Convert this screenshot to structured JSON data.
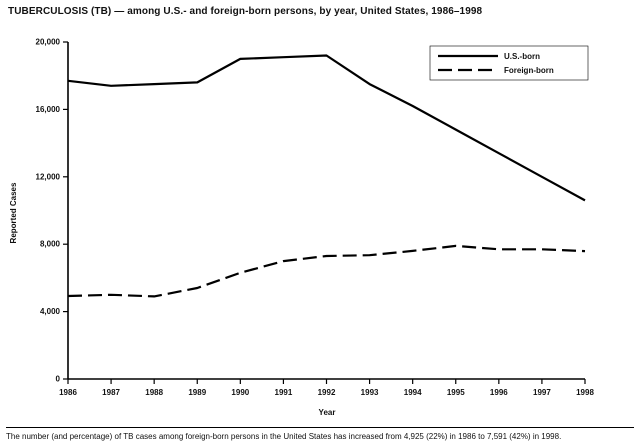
{
  "chart_data": {
    "type": "line",
    "title": "TUBERCULOSIS (TB) — among U.S.- and foreign-born persons, by year, United States, 1986–1998",
    "xlabel": "Year",
    "ylabel": "Reported Cases",
    "x": [
      1986,
      1987,
      1988,
      1989,
      1990,
      1991,
      1992,
      1993,
      1994,
      1995,
      1996,
      1997,
      1998
    ],
    "series": [
      {
        "name": "U.S.-born",
        "style": "solid",
        "values": [
          17700,
          17400,
          17500,
          17600,
          19000,
          19100,
          19200,
          17500,
          16200,
          14800,
          13400,
          12000,
          10600
        ]
      },
      {
        "name": "Foreign-born",
        "style": "dashed",
        "values": [
          4925,
          5000,
          4900,
          5400,
          6300,
          7000,
          7300,
          7350,
          7600,
          7900,
          7700,
          7700,
          7591
        ]
      }
    ],
    "ylim": [
      0,
      20000
    ],
    "yticks": [
      0,
      4000,
      8000,
      12000,
      16000,
      20000
    ],
    "ytick_labels": [
      "0",
      "4,000",
      "8,000",
      "12,000",
      "16,000",
      "20,000"
    ],
    "xtick_labels": [
      "1986",
      "1987",
      "1988",
      "1989",
      "1990",
      "1991",
      "1992",
      "1993",
      "1994",
      "1995",
      "1996",
      "1997",
      "1998"
    ],
    "legend_position": "top-right",
    "grid": false,
    "line_color": "#000000"
  },
  "footnote": "The number (and percentage) of TB cases among foreign-born persons in the United States has increased from 4,925 (22%) in 1986 to 7,591 (42%) in 1998."
}
